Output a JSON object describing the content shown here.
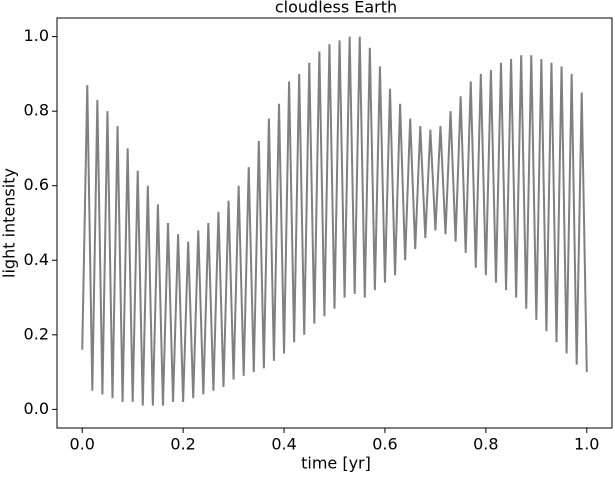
{
  "chart_data": {
    "type": "line",
    "title": "cloudless Earth",
    "x_label": "time [yr]",
    "y_label": "light intensity",
    "x": [
      0.0,
      0.01,
      0.02,
      0.03,
      0.04,
      0.05,
      0.06,
      0.07,
      0.08,
      0.09,
      0.1,
      0.11,
      0.12,
      0.13,
      0.14,
      0.15,
      0.16,
      0.17,
      0.18,
      0.19,
      0.2,
      0.21,
      0.22,
      0.23,
      0.24,
      0.25,
      0.26,
      0.27,
      0.28,
      0.29,
      0.3,
      0.31,
      0.32,
      0.33,
      0.34,
      0.35,
      0.36,
      0.37,
      0.38,
      0.39,
      0.4,
      0.41,
      0.42,
      0.43,
      0.44,
      0.45,
      0.46,
      0.47,
      0.48,
      0.49,
      0.5,
      0.51,
      0.52,
      0.53,
      0.54,
      0.55,
      0.56,
      0.57,
      0.58,
      0.59,
      0.6,
      0.61,
      0.62,
      0.63,
      0.64,
      0.65,
      0.66,
      0.67,
      0.68,
      0.69,
      0.7,
      0.71,
      0.72,
      0.73,
      0.74,
      0.75,
      0.76,
      0.77,
      0.78,
      0.79,
      0.8,
      0.81,
      0.82,
      0.83,
      0.84,
      0.85,
      0.86,
      0.87,
      0.88,
      0.89,
      0.9,
      0.91,
      0.92,
      0.93,
      0.94,
      0.95,
      0.96,
      0.97,
      0.98,
      0.99,
      1.0
    ],
    "series": [
      {
        "color": "#808080",
        "values": [
          0.16,
          0.87,
          0.05,
          0.83,
          0.04,
          0.8,
          0.03,
          0.76,
          0.02,
          0.7,
          0.02,
          0.64,
          0.01,
          0.6,
          0.01,
          0.55,
          0.01,
          0.5,
          0.02,
          0.47,
          0.02,
          0.45,
          0.03,
          0.48,
          0.04,
          0.5,
          0.05,
          0.53,
          0.06,
          0.56,
          0.08,
          0.6,
          0.09,
          0.65,
          0.1,
          0.72,
          0.11,
          0.78,
          0.13,
          0.82,
          0.15,
          0.88,
          0.18,
          0.9,
          0.2,
          0.93,
          0.23,
          0.96,
          0.25,
          0.98,
          0.27,
          0.99,
          0.3,
          1.0,
          0.31,
          1.0,
          0.3,
          0.97,
          0.32,
          0.92,
          0.34,
          0.86,
          0.36,
          0.82,
          0.4,
          0.78,
          0.43,
          0.76,
          0.46,
          0.75,
          0.48,
          0.76,
          0.47,
          0.8,
          0.45,
          0.84,
          0.42,
          0.88,
          0.38,
          0.9,
          0.36,
          0.91,
          0.34,
          0.93,
          0.32,
          0.94,
          0.3,
          0.95,
          0.27,
          0.95,
          0.24,
          0.94,
          0.21,
          0.93,
          0.18,
          0.92,
          0.15,
          0.9,
          0.12,
          0.85,
          0.1
        ]
      }
    ],
    "xlim": [
      -0.05,
      1.05
    ],
    "ylim": [
      -0.05,
      1.05
    ],
    "xticks": [
      {
        "value": 0,
        "label": "0.0"
      },
      {
        "value": 0.2,
        "label": "0.2"
      },
      {
        "value": 0.4,
        "label": "0.4"
      },
      {
        "value": 0.6,
        "label": "0.6"
      },
      {
        "value": 0.8,
        "label": "0.8"
      },
      {
        "value": 1,
        "label": "1.0"
      }
    ],
    "yticks": [
      {
        "value": 0,
        "label": "0.0"
      },
      {
        "value": 0.2,
        "label": "0.2"
      },
      {
        "value": 0.4,
        "label": "0.4"
      },
      {
        "value": 0.6,
        "label": "0.6"
      },
      {
        "value": 0.8,
        "label": "0.8"
      },
      {
        "value": 1,
        "label": "1.0"
      }
    ]
  }
}
